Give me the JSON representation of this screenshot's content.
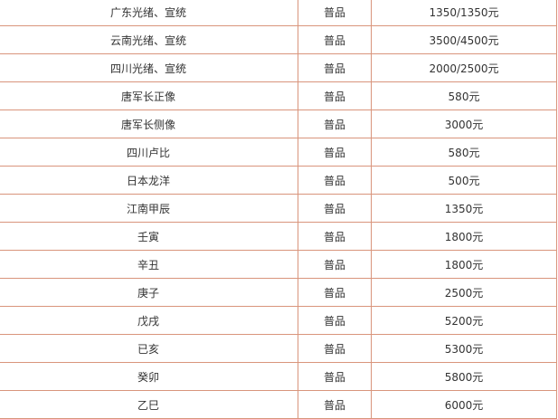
{
  "rows": [
    {
      "name": "广东光绪、宣统",
      "grade": "普品",
      "price": "1350/1350元"
    },
    {
      "name": "云南光绪、宣统",
      "grade": "普品",
      "price": "3500/4500元"
    },
    {
      "name": "四川光绪、宣统",
      "grade": "普品",
      "price": "2000/2500元"
    },
    {
      "name": "唐军长正像",
      "grade": "普品",
      "price": "580元"
    },
    {
      "name": "唐军长侧像",
      "grade": "普品",
      "price": "3000元"
    },
    {
      "name": "四川卢比",
      "grade": "普品",
      "price": "580元"
    },
    {
      "name": "日本龙洋",
      "grade": "普品",
      "price": "500元"
    },
    {
      "name": "江南甲辰",
      "grade": "普品",
      "price": "1350元"
    },
    {
      "name": "壬寅",
      "grade": "普品",
      "price": "1800元"
    },
    {
      "name": "辛丑",
      "grade": "普品",
      "price": "1800元"
    },
    {
      "name": "庚子",
      "grade": "普品",
      "price": "2500元"
    },
    {
      "name": "戊戌",
      "grade": "普品",
      "price": "5200元"
    },
    {
      "name": "已亥",
      "grade": "普品",
      "price": "5300元"
    },
    {
      "name": "癸卯",
      "grade": "普品",
      "price": "5800元"
    },
    {
      "name": "乙巳",
      "grade": "普品",
      "price": "6000元"
    }
  ],
  "colors": {
    "border": "#d9957c",
    "text": "#333333"
  }
}
